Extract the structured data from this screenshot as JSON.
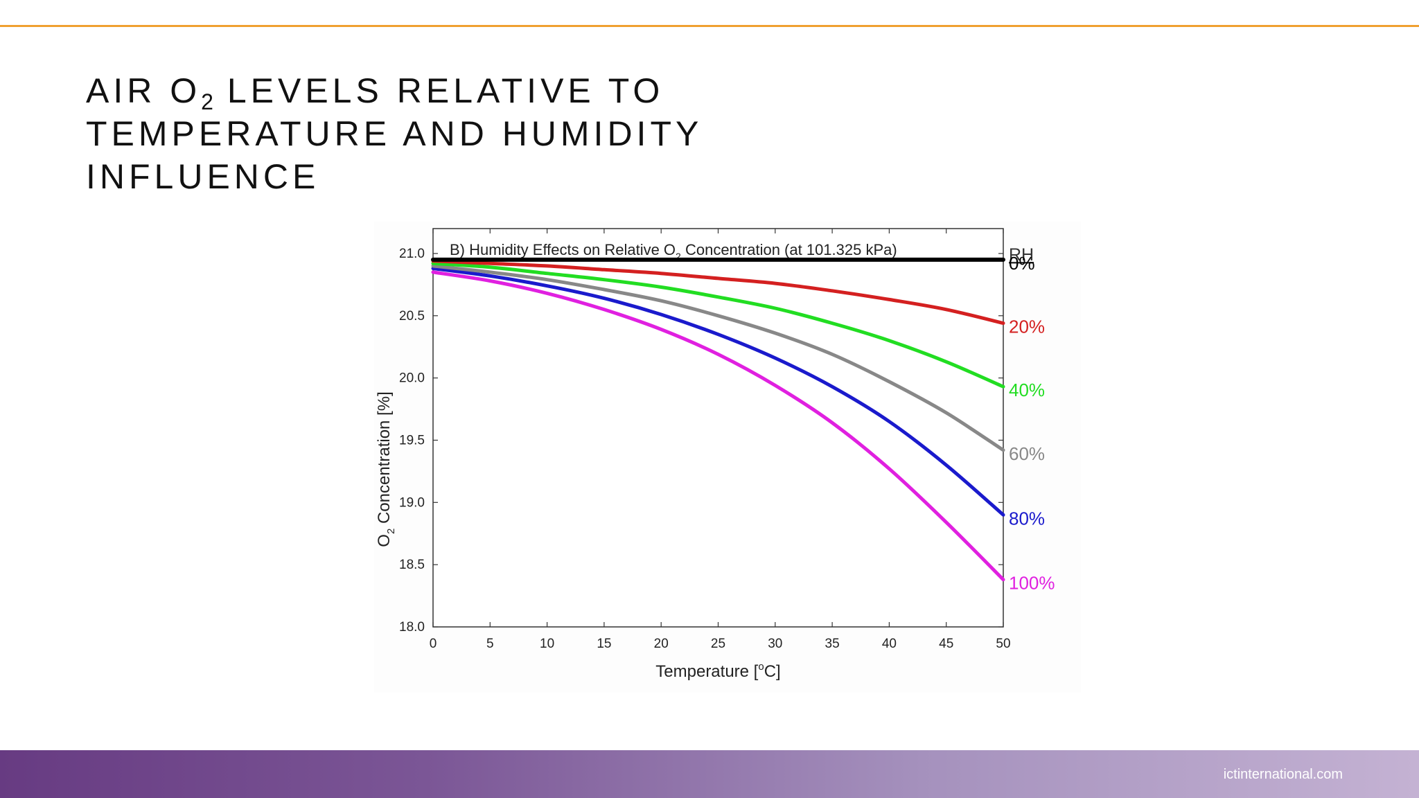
{
  "slide": {
    "title_parts": [
      "AIR O",
      "2",
      " LEVELS RELATIVE TO",
      "TEMPERATURE AND HUMIDITY",
      "INFLUENCE"
    ],
    "footer_site": "ictinternational.com",
    "accent_color": "#f0a030",
    "footer_colors": [
      "#673b82",
      "#c4b2d3"
    ]
  },
  "chart_data": {
    "type": "line",
    "title_parts": [
      "B) Humidity Effects on Relative O",
      "2",
      " Concentration (at 101.325 kPa)"
    ],
    "xlabel_parts": [
      "Temperature [",
      "o",
      "C]"
    ],
    "ylabel_parts": [
      "O",
      "2",
      " Concentration [%]"
    ],
    "xlim": [
      0,
      50
    ],
    "ylim": [
      18.0,
      21.2
    ],
    "xticks": [
      0,
      5,
      10,
      15,
      20,
      25,
      30,
      35,
      40,
      45,
      50
    ],
    "xtick_labels": [
      "0",
      "5",
      "10",
      "15",
      "20",
      "25",
      "30",
      "35",
      "40",
      "45",
      "50"
    ],
    "yticks": [
      18.0,
      18.5,
      19.0,
      19.5,
      20.0,
      20.5,
      21.0
    ],
    "ytick_labels": [
      "18.0",
      "18.5",
      "19.0",
      "19.5",
      "20.0",
      "20.5",
      "21.0"
    ],
    "grid": false,
    "legend_title": "RH",
    "legend_placement": "right-edge",
    "x": [
      0,
      5,
      10,
      15,
      20,
      25,
      30,
      35,
      40,
      45,
      50
    ],
    "series": [
      {
        "name": "0%",
        "color": "#000000",
        "values": [
          20.95,
          20.95,
          20.95,
          20.95,
          20.95,
          20.95,
          20.95,
          20.95,
          20.95,
          20.95,
          20.95
        ]
      },
      {
        "name": "20%",
        "color": "#d42020",
        "values": [
          20.94,
          20.92,
          20.9,
          20.87,
          20.84,
          20.8,
          20.76,
          20.7,
          20.63,
          20.55,
          20.44
        ]
      },
      {
        "name": "40%",
        "color": "#22dd22",
        "values": [
          20.92,
          20.89,
          20.84,
          20.79,
          20.73,
          20.65,
          20.56,
          20.44,
          20.3,
          20.13,
          19.93
        ]
      },
      {
        "name": "60%",
        "color": "#888888",
        "values": [
          20.9,
          20.85,
          20.79,
          20.71,
          20.62,
          20.5,
          20.36,
          20.19,
          19.97,
          19.72,
          19.42
        ]
      },
      {
        "name": "80%",
        "color": "#1a1acc",
        "values": [
          20.88,
          20.82,
          20.74,
          20.64,
          20.51,
          20.35,
          20.16,
          19.93,
          19.65,
          19.3,
          18.9
        ]
      },
      {
        "name": "100%",
        "color": "#e020e0",
        "values": [
          20.85,
          20.78,
          20.68,
          20.55,
          20.39,
          20.19,
          19.94,
          19.64,
          19.27,
          18.84,
          18.38
        ]
      }
    ]
  }
}
